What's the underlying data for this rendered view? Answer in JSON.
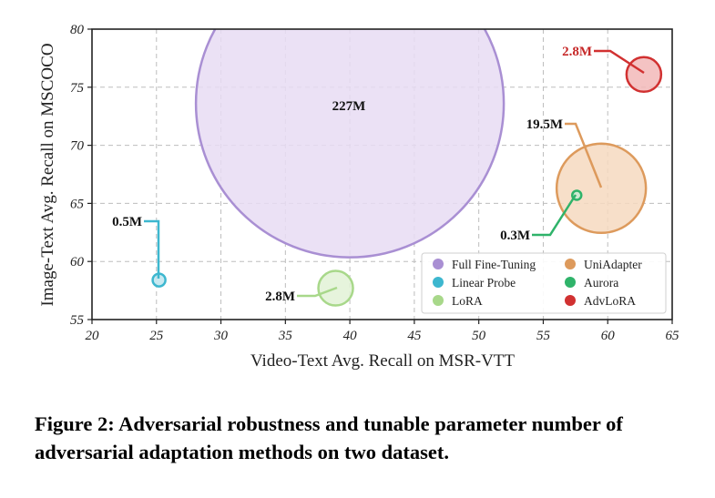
{
  "chart_data": {
    "type": "scatter",
    "subtype": "bubble",
    "xlabel": "Video-Text Avg. Recall on MSR-VTT",
    "ylabel": "Image-Text Avg. Recall on MSCOCO",
    "xlim": [
      20,
      65
    ],
    "ylim": [
      55,
      80
    ],
    "xticks": [
      20,
      25,
      30,
      35,
      40,
      45,
      50,
      55,
      60,
      65
    ],
    "yticks": [
      55,
      60,
      65,
      70,
      75,
      80
    ],
    "grid": true,
    "legend_position": "bottom-right",
    "series": [
      {
        "name": "Full Fine-Tuning",
        "x": 40.0,
        "y": 73.6,
        "params": "227M",
        "color": "#a98fd3",
        "fill": "#e7dcf3"
      },
      {
        "name": "Linear Probe",
        "x": 25.2,
        "y": 58.4,
        "params": "0.5M",
        "color": "#3db7cf",
        "fill": "#bfe5ee"
      },
      {
        "name": "LoRA",
        "x": 38.9,
        "y": 57.7,
        "params": "2.8M",
        "color": "#a8d88a",
        "fill": "#e2f2d6"
      },
      {
        "name": "UniAdapter",
        "x": 59.5,
        "y": 66.3,
        "params": "19.5M",
        "color": "#dd9a5c",
        "fill": "#f6d9bf"
      },
      {
        "name": "Aurora",
        "x": 57.6,
        "y": 65.7,
        "params": "0.3M",
        "color": "#2fb36a",
        "fill": "#c8ecd4"
      },
      {
        "name": "AdvLoRA",
        "x": 62.8,
        "y": 76.1,
        "params": "2.8M",
        "color": "#d13131",
        "fill": "#f2b8b8"
      }
    ]
  },
  "caption": "Figure 2: Adversarial robustness and tunable parameter number of adversarial adaptation methods on two dataset."
}
